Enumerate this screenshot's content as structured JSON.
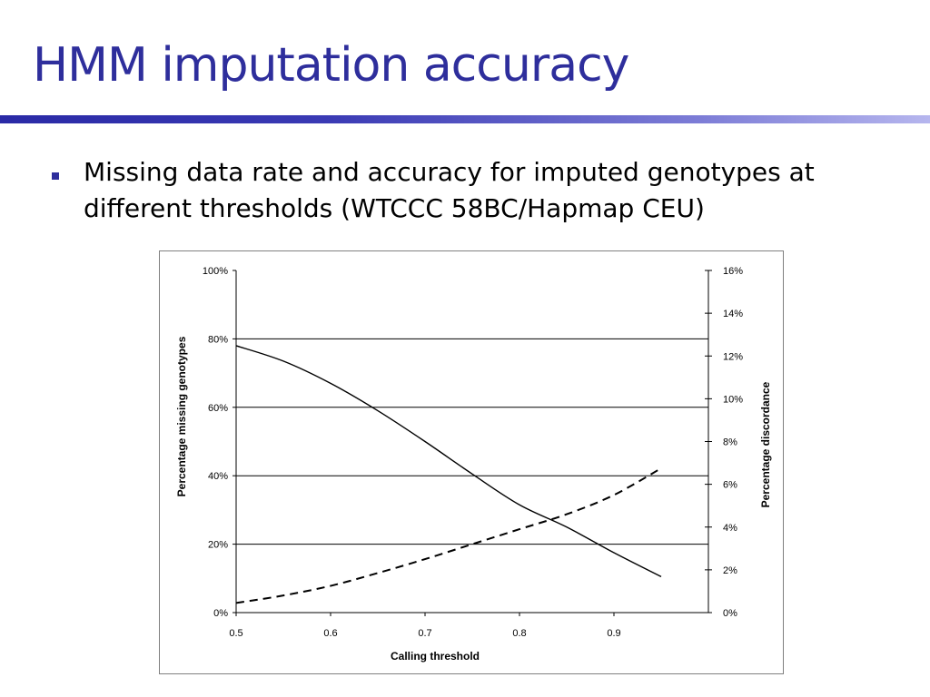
{
  "slide": {
    "title": "HMM imputation accuracy",
    "bullet": "Missing data rate and accuracy for imputed genotypes at different thresholds (WTCCC 58BC/Hapmap CEU)"
  },
  "chart_data": {
    "type": "line",
    "title": "",
    "xlabel": "Calling threshold",
    "ylabel_left": "Percentage missing genotypes",
    "ylabel_right": "Percentage discordance",
    "xlim": [
      0.5,
      1.0
    ],
    "ylim_left": [
      0,
      100
    ],
    "ylim_right": [
      0,
      16
    ],
    "x_ticks": [
      "0.5",
      "0.6",
      "0.7",
      "0.8",
      "0.9"
    ],
    "x_tick_values": [
      0.5,
      0.6,
      0.7,
      0.8,
      0.9
    ],
    "y_left_ticks": [
      "0%",
      "20%",
      "40%",
      "60%",
      "80%",
      "100%"
    ],
    "y_left_tick_values": [
      0,
      20,
      40,
      60,
      80,
      100
    ],
    "y_right_ticks": [
      "0%",
      "2%",
      "4%",
      "6%",
      "8%",
      "10%",
      "12%",
      "14%",
      "16%"
    ],
    "y_right_tick_values": [
      0,
      2,
      4,
      6,
      8,
      10,
      12,
      14,
      16
    ],
    "grid": "horizontal at 20%, 40%, 60%, 80%",
    "gridlines_left": [
      20,
      40,
      60,
      80
    ],
    "series": [
      {
        "axis": "left",
        "style": "solid",
        "color": "#000000",
        "points": [
          [
            0.5,
            78
          ],
          [
            0.55,
            73.5
          ],
          [
            0.6,
            67
          ],
          [
            0.65,
            59
          ],
          [
            0.7,
            50
          ],
          [
            0.75,
            40.5
          ],
          [
            0.8,
            31.5
          ],
          [
            0.85,
            25
          ],
          [
            0.9,
            17.5
          ],
          [
            0.95,
            10.5
          ]
        ]
      },
      {
        "axis": "right",
        "style": "dashed",
        "color": "#000000",
        "points": [
          [
            0.5,
            0.45
          ],
          [
            0.55,
            0.8
          ],
          [
            0.6,
            1.25
          ],
          [
            0.65,
            1.85
          ],
          [
            0.7,
            2.5
          ],
          [
            0.75,
            3.2
          ],
          [
            0.8,
            3.9
          ],
          [
            0.85,
            4.6
          ],
          [
            0.9,
            5.5
          ],
          [
            0.95,
            6.75
          ]
        ]
      }
    ]
  }
}
